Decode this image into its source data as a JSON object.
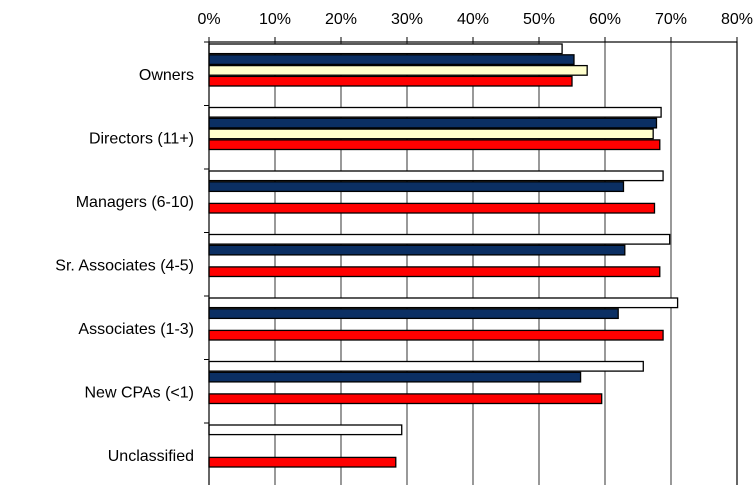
{
  "chart_data": {
    "type": "bar",
    "orientation": "horizontal",
    "title": "",
    "xlabel": "",
    "ylabel": "",
    "xlim": [
      0,
      80
    ],
    "x_tick_labels": [
      "0%",
      "10%",
      "20%",
      "30%",
      "40%",
      "50%",
      "60%",
      "70%",
      "80%"
    ],
    "x_ticks": [
      0,
      10,
      20,
      30,
      40,
      50,
      60,
      70,
      80
    ],
    "x_axis_position": "top",
    "grid": true,
    "categories": [
      "Owners",
      "Directors (11+)",
      "Managers (6-10)",
      "Sr. Associates (4-5)",
      "Associates (1-3)",
      "New CPAs (<1)",
      "Unclassified"
    ],
    "series": [
      {
        "color": "#ffffff",
        "values": [
          53.5,
          68.5,
          68.8,
          69.8,
          71.0,
          65.8,
          29.2
        ]
      },
      {
        "color": "#0b2f63",
        "values": [
          55.3,
          67.8,
          62.8,
          63.0,
          62.0,
          56.3,
          null
        ]
      },
      {
        "color": "#ffffcc",
        "values": [
          57.3,
          67.3,
          null,
          null,
          null,
          null,
          null
        ]
      },
      {
        "color": "#ff0000",
        "values": [
          55.0,
          68.3,
          67.5,
          68.3,
          68.8,
          59.5,
          28.3
        ]
      }
    ]
  }
}
